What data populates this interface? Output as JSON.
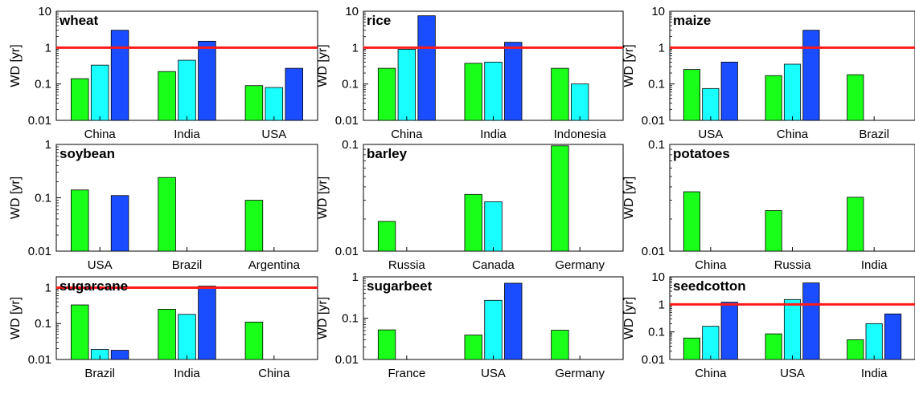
{
  "figure": {
    "ylabel": "WD [yr]",
    "threshold_color": "#ff1a1a",
    "series_colors": [
      "#19ff19",
      "#19ffff",
      "#1a4dff"
    ],
    "bar_stroke": "#000000"
  },
  "chart_data": [
    {
      "type": "bar",
      "scale": "log",
      "title": "wheat",
      "ylabel": "WD [yr]",
      "ylim": [
        0.01,
        10
      ],
      "yticks": [
        0.01,
        0.1,
        1,
        10
      ],
      "ytick_labels": [
        "0.01",
        "0.1",
        "1",
        "10"
      ],
      "categories": [
        "China",
        "India",
        "USA"
      ],
      "series": [
        {
          "values": [
            0.14,
            0.22,
            0.09
          ]
        },
        {
          "values": [
            0.33,
            0.45,
            0.08
          ]
        },
        {
          "values": [
            3.0,
            1.5,
            0.27
          ]
        }
      ],
      "threshold": 1
    },
    {
      "type": "bar",
      "scale": "log",
      "title": "rice",
      "ylabel": "WD [yr]",
      "ylim": [
        0.01,
        10
      ],
      "yticks": [
        0.01,
        0.1,
        1,
        10
      ],
      "ytick_labels": [
        "0.01",
        "0.1",
        "1",
        "10"
      ],
      "categories": [
        "China",
        "India",
        "Indonesia"
      ],
      "series": [
        {
          "values": [
            0.27,
            0.37,
            0.27
          ]
        },
        {
          "values": [
            0.9,
            0.4,
            0.1
          ]
        },
        {
          "values": [
            7.5,
            1.4,
            null
          ]
        }
      ],
      "threshold": 1
    },
    {
      "type": "bar",
      "scale": "log",
      "title": "maize",
      "ylabel": "WD [yr]",
      "ylim": [
        0.01,
        10
      ],
      "yticks": [
        0.01,
        0.1,
        1,
        10
      ],
      "ytick_labels": [
        "0.01",
        "0.1",
        "1",
        "10"
      ],
      "categories": [
        "USA",
        "China",
        "Brazil"
      ],
      "series": [
        {
          "values": [
            0.25,
            0.17,
            0.18
          ]
        },
        {
          "values": [
            0.075,
            0.35,
            null
          ]
        },
        {
          "values": [
            0.4,
            3.0,
            null
          ]
        }
      ],
      "threshold": 1
    },
    {
      "type": "bar",
      "scale": "log",
      "title": "soybean",
      "ylabel": "WD [yr]",
      "ylim": [
        0.01,
        1
      ],
      "yticks": [
        0.01,
        0.1,
        1
      ],
      "ytick_labels": [
        "0.01",
        "0.1",
        "1"
      ],
      "categories": [
        "USA",
        "Brazil",
        "Argentina"
      ],
      "series": [
        {
          "values": [
            0.14,
            0.24,
            0.09
          ]
        },
        {
          "values": [
            null,
            null,
            null
          ]
        },
        {
          "values": [
            0.11,
            null,
            null
          ]
        }
      ],
      "threshold": null
    },
    {
      "type": "bar",
      "scale": "log",
      "title": "barley",
      "ylabel": "WD [yr]",
      "ylim": [
        0.01,
        0.1
      ],
      "yticks": [
        0.01,
        0.1
      ],
      "ytick_labels": [
        "0.01",
        "0.1"
      ],
      "categories": [
        "Russia",
        "Canada",
        "Germany"
      ],
      "series": [
        {
          "values": [
            0.019,
            0.034,
            0.097
          ]
        },
        {
          "values": [
            null,
            0.029,
            null
          ]
        },
        {
          "values": [
            null,
            null,
            null
          ]
        }
      ],
      "threshold": null
    },
    {
      "type": "bar",
      "scale": "log",
      "title": "potatoes",
      "ylabel": "WD [yr]",
      "ylim": [
        0.01,
        0.1
      ],
      "yticks": [
        0.01,
        0.1
      ],
      "ytick_labels": [
        "0.01",
        "0.1"
      ],
      "categories": [
        "China",
        "Russia",
        "India"
      ],
      "series": [
        {
          "values": [
            0.036,
            0.024,
            0.032
          ]
        },
        {
          "values": [
            null,
            null,
            null
          ]
        },
        {
          "values": [
            null,
            null,
            null
          ]
        }
      ],
      "threshold": null
    },
    {
      "type": "bar",
      "scale": "log",
      "title": "sugarcane",
      "ylabel": "WD [yr]",
      "ylim": [
        0.01,
        2
      ],
      "yticks": [
        0.01,
        0.1,
        1
      ],
      "ytick_labels": [
        "0.01",
        "0.1",
        "1"
      ],
      "categories": [
        "Brazil",
        "India",
        "China"
      ],
      "series": [
        {
          "values": [
            0.33,
            0.25,
            0.11
          ]
        },
        {
          "values": [
            0.019,
            0.18,
            null
          ]
        },
        {
          "values": [
            0.018,
            1.1,
            null
          ]
        }
      ],
      "threshold": 1
    },
    {
      "type": "bar",
      "scale": "log",
      "title": "sugarbeet",
      "ylabel": "WD [yr]",
      "ylim": [
        0.01,
        1
      ],
      "yticks": [
        0.01,
        0.1,
        1
      ],
      "ytick_labels": [
        "0.01",
        "0.1",
        "1"
      ],
      "categories": [
        "France",
        "USA",
        "Germany"
      ],
      "series": [
        {
          "values": [
            0.052,
            0.039,
            0.051
          ]
        },
        {
          "values": [
            null,
            0.27,
            null
          ]
        },
        {
          "values": [
            null,
            0.7,
            null
          ]
        }
      ],
      "threshold": null
    },
    {
      "type": "bar",
      "scale": "log",
      "title": "seedcotton",
      "ylabel": "WD [yr]",
      "ylim": [
        0.01,
        10
      ],
      "yticks": [
        0.01,
        0.1,
        1,
        10
      ],
      "ytick_labels": [
        "0.01",
        "0.1",
        "1",
        "10"
      ],
      "categories": [
        "China",
        "USA",
        "India"
      ],
      "series": [
        {
          "values": [
            0.06,
            0.085,
            0.052
          ]
        },
        {
          "values": [
            0.16,
            1.5,
            0.2
          ]
        },
        {
          "values": [
            1.2,
            6.0,
            0.45
          ]
        }
      ],
      "threshold": 1
    }
  ]
}
